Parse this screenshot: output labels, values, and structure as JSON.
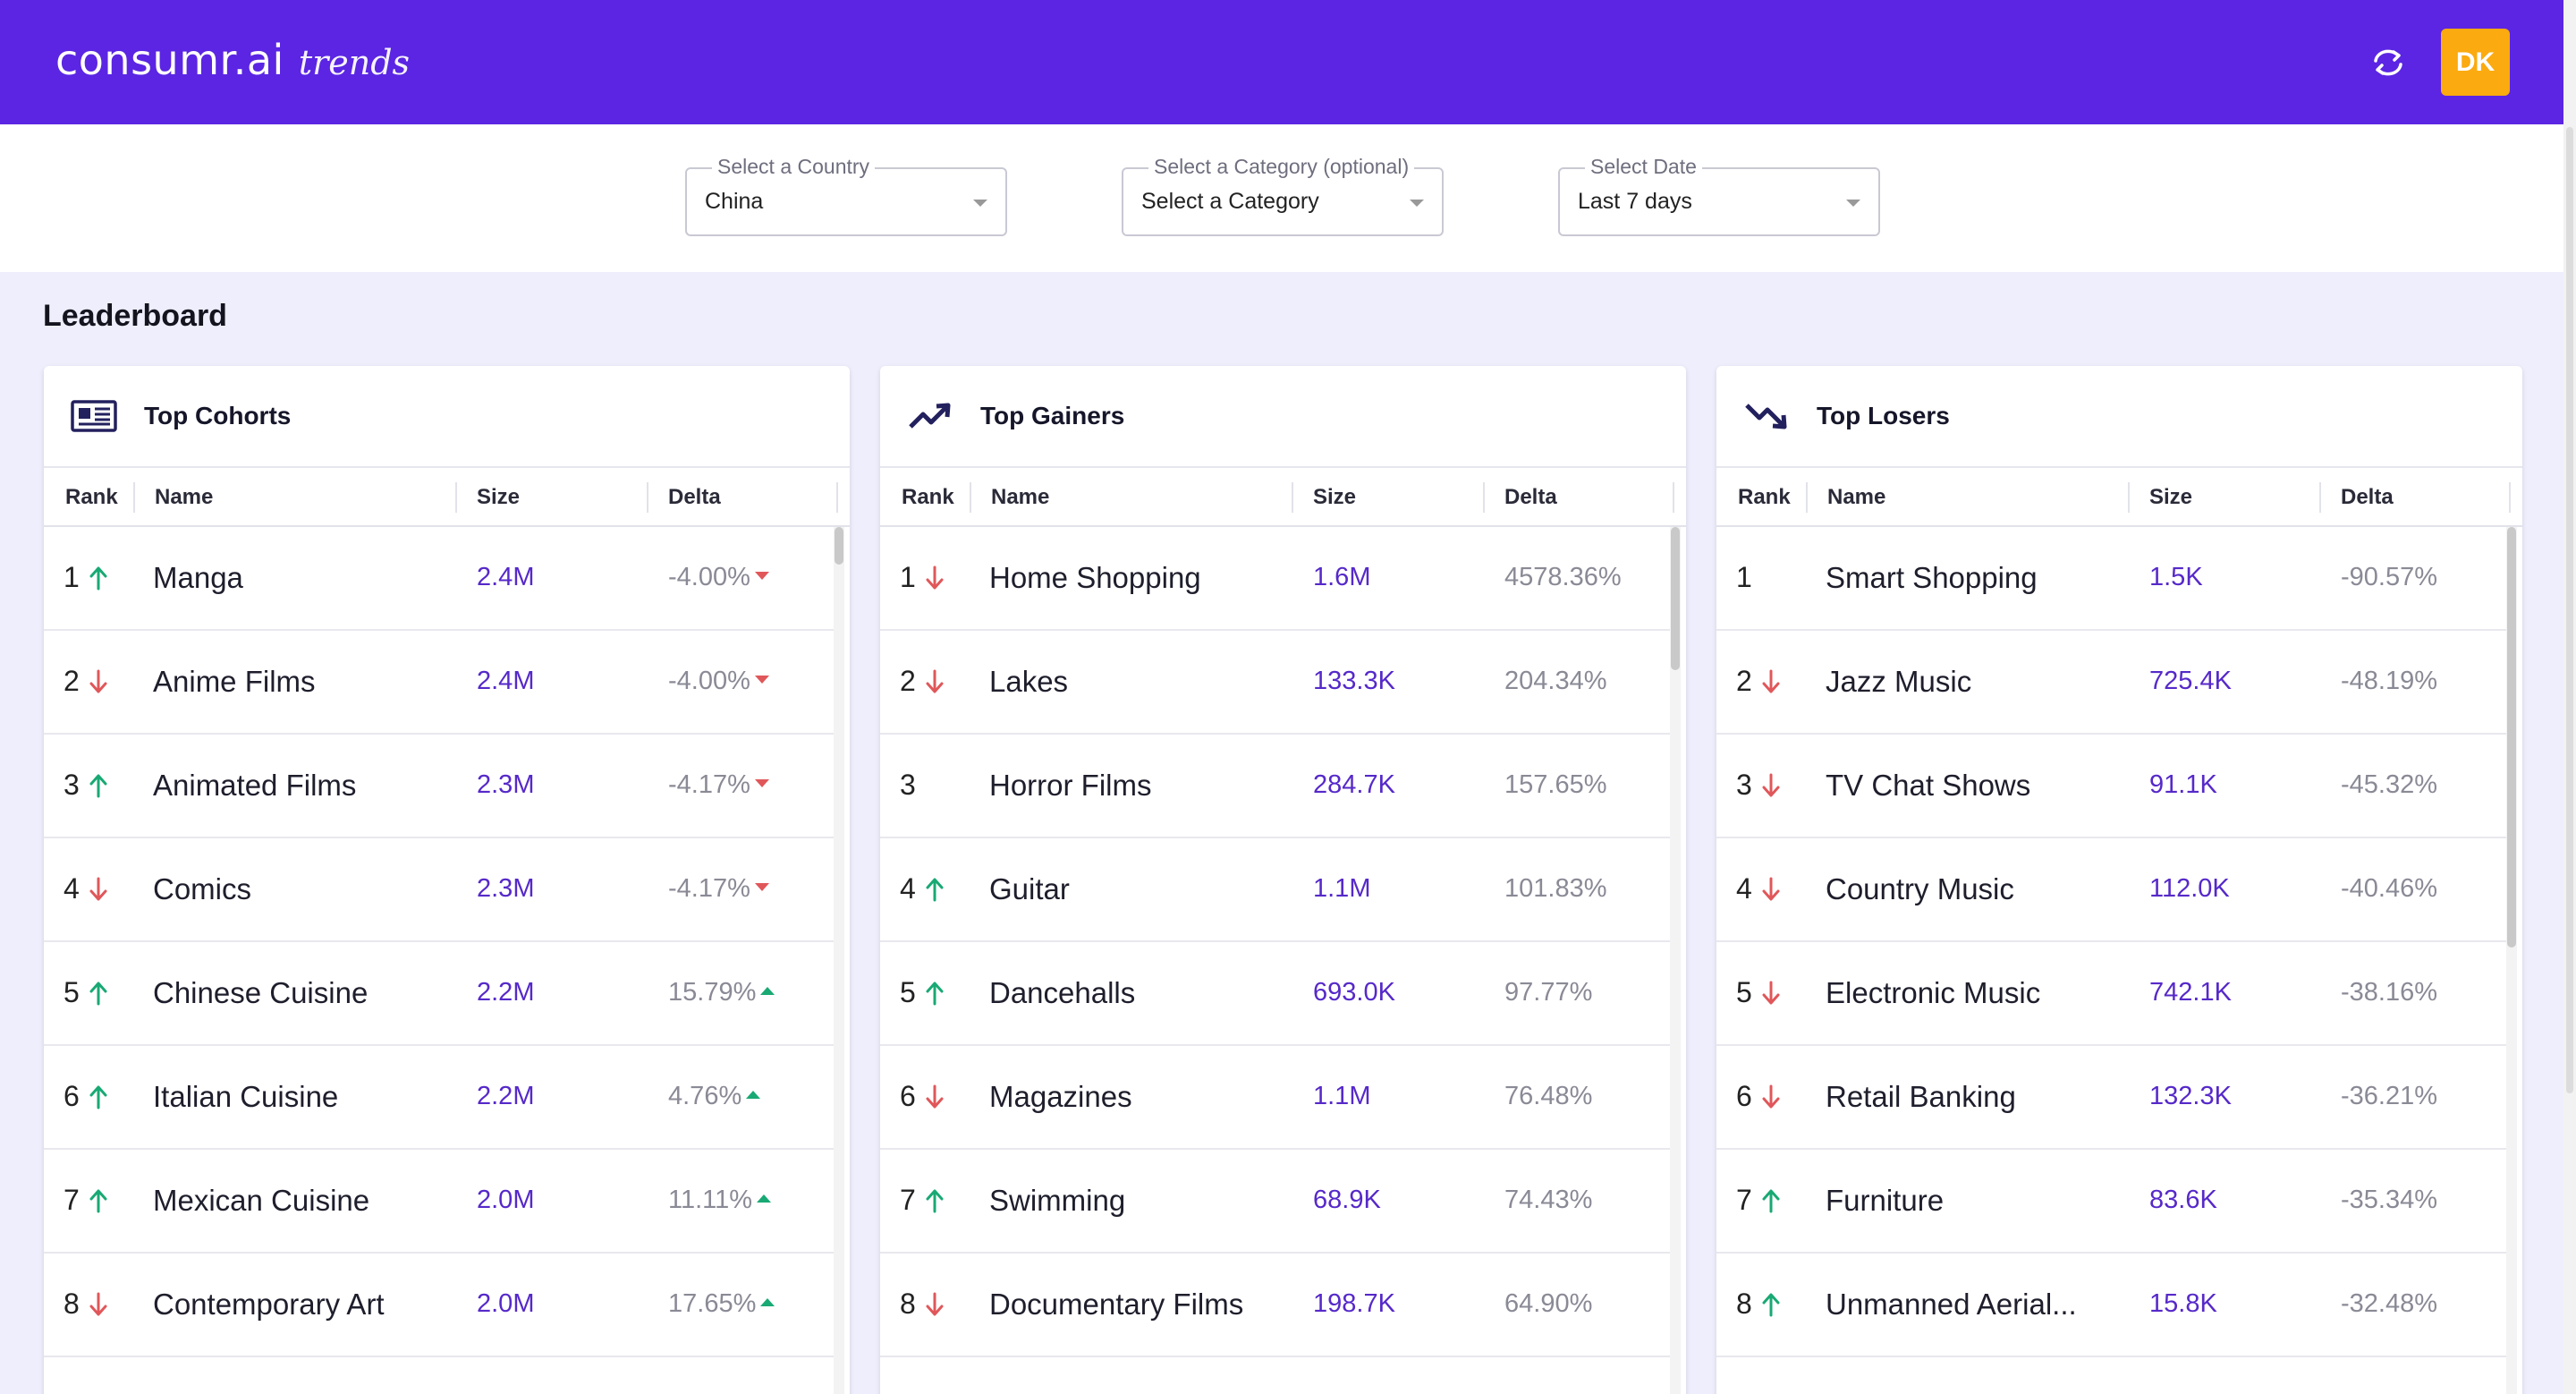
{
  "header": {
    "logo_main": "consumr.ai",
    "logo_sub": "trends",
    "avatar_initials": "DK",
    "colors": {
      "brand": "#5b25e3",
      "avatar": "#fbaa0f"
    }
  },
  "filters": {
    "country": {
      "label": "Select a Country",
      "value": "China"
    },
    "category": {
      "label": "Select a Category (optional)",
      "value": "Select a Category"
    },
    "date": {
      "label": "Select Date",
      "value": "Last 7 days"
    }
  },
  "leaderboard_title": "Leaderboard",
  "columns": {
    "rank": "Rank",
    "name": "Name",
    "size": "Size",
    "delta": "Delta"
  },
  "cards": [
    {
      "title": "Top Cohorts",
      "icon": "newspaper-icon",
      "rows": [
        {
          "rank": "1",
          "trend": "up",
          "name": "Manga",
          "size": "2.4M",
          "delta": "-4.00%",
          "delta_dir": "down"
        },
        {
          "rank": "2",
          "trend": "down",
          "name": "Anime Films",
          "size": "2.4M",
          "delta": "-4.00%",
          "delta_dir": "down"
        },
        {
          "rank": "3",
          "trend": "up",
          "name": "Animated Films",
          "size": "2.3M",
          "delta": "-4.17%",
          "delta_dir": "down"
        },
        {
          "rank": "4",
          "trend": "down",
          "name": "Comics",
          "size": "2.3M",
          "delta": "-4.17%",
          "delta_dir": "down"
        },
        {
          "rank": "5",
          "trend": "up",
          "name": "Chinese Cuisine",
          "size": "2.2M",
          "delta": "15.79%",
          "delta_dir": "up"
        },
        {
          "rank": "6",
          "trend": "up",
          "name": "Italian Cuisine",
          "size": "2.2M",
          "delta": "4.76%",
          "delta_dir": "up"
        },
        {
          "rank": "7",
          "trend": "up",
          "name": "Mexican Cuisine",
          "size": "2.0M",
          "delta": "11.11%",
          "delta_dir": "up"
        },
        {
          "rank": "8",
          "trend": "down",
          "name": "Contemporary Art",
          "size": "2.0M",
          "delta": "17.65%",
          "delta_dir": "up"
        }
      ]
    },
    {
      "title": "Top Gainers",
      "icon": "trending-up-icon",
      "rows": [
        {
          "rank": "1",
          "trend": "down",
          "name": "Home Shopping",
          "size": "1.6M",
          "delta": "4578.36%",
          "delta_dir": "none"
        },
        {
          "rank": "2",
          "trend": "down",
          "name": "Lakes",
          "size": "133.3K",
          "delta": "204.34%",
          "delta_dir": "none"
        },
        {
          "rank": "3",
          "trend": "none",
          "name": "Horror Films",
          "size": "284.7K",
          "delta": "157.65%",
          "delta_dir": "none"
        },
        {
          "rank": "4",
          "trend": "up",
          "name": "Guitar",
          "size": "1.1M",
          "delta": "101.83%",
          "delta_dir": "none"
        },
        {
          "rank": "5",
          "trend": "up",
          "name": "Dancehalls",
          "size": "693.0K",
          "delta": "97.77%",
          "delta_dir": "none"
        },
        {
          "rank": "6",
          "trend": "down",
          "name": "Magazines",
          "size": "1.1M",
          "delta": "76.48%",
          "delta_dir": "none"
        },
        {
          "rank": "7",
          "trend": "up",
          "name": "Swimming",
          "size": "68.9K",
          "delta": "74.43%",
          "delta_dir": "none"
        },
        {
          "rank": "8",
          "trend": "down",
          "name": "Documentary Films",
          "size": "198.7K",
          "delta": "64.90%",
          "delta_dir": "none"
        }
      ]
    },
    {
      "title": "Top Losers",
      "icon": "trending-down-icon",
      "rows": [
        {
          "rank": "1",
          "trend": "none",
          "name": "Smart Shopping",
          "size": "1.5K",
          "delta": "-90.57%",
          "delta_dir": "none"
        },
        {
          "rank": "2",
          "trend": "down",
          "name": "Jazz Music",
          "size": "725.4K",
          "delta": "-48.19%",
          "delta_dir": "none"
        },
        {
          "rank": "3",
          "trend": "down",
          "name": "TV Chat Shows",
          "size": "91.1K",
          "delta": "-45.32%",
          "delta_dir": "none"
        },
        {
          "rank": "4",
          "trend": "down",
          "name": "Country Music",
          "size": "112.0K",
          "delta": "-40.46%",
          "delta_dir": "none"
        },
        {
          "rank": "5",
          "trend": "down",
          "name": "Electronic Music",
          "size": "742.1K",
          "delta": "-38.16%",
          "delta_dir": "none"
        },
        {
          "rank": "6",
          "trend": "down",
          "name": "Retail Banking",
          "size": "132.3K",
          "delta": "-36.21%",
          "delta_dir": "none"
        },
        {
          "rank": "7",
          "trend": "up",
          "name": "Furniture",
          "size": "83.6K",
          "delta": "-35.34%",
          "delta_dir": "none"
        },
        {
          "rank": "8",
          "trend": "up",
          "name": "Unmanned Aerial...",
          "size": "15.8K",
          "delta": "-32.48%",
          "delta_dir": "none"
        }
      ]
    }
  ]
}
